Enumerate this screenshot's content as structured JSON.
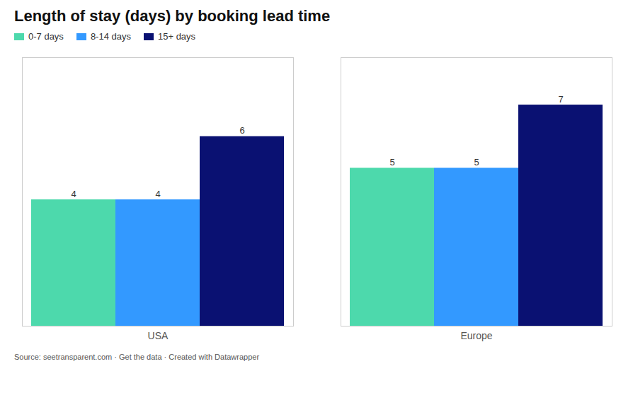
{
  "chart_data": {
    "type": "bar",
    "title": "Length of stay (days) by booking lead time",
    "categories": [
      "USA",
      "Europe"
    ],
    "series": [
      {
        "name": "0-7 days",
        "color": "#4DD9AC",
        "values": [
          4,
          5
        ]
      },
      {
        "name": "8-14 days",
        "color": "#3399FF",
        "values": [
          4,
          5
        ]
      },
      {
        "name": "15+ days",
        "color": "#0A1172",
        "values": [
          6,
          7
        ]
      }
    ],
    "ylim": [
      0,
      8.5
    ],
    "data_labels": true,
    "tick_labels": "x",
    "grid": false,
    "legend": "upper left",
    "annotations": [
      "Source: seetransparent.com · Get the data · Created with Datawrapper"
    ]
  }
}
